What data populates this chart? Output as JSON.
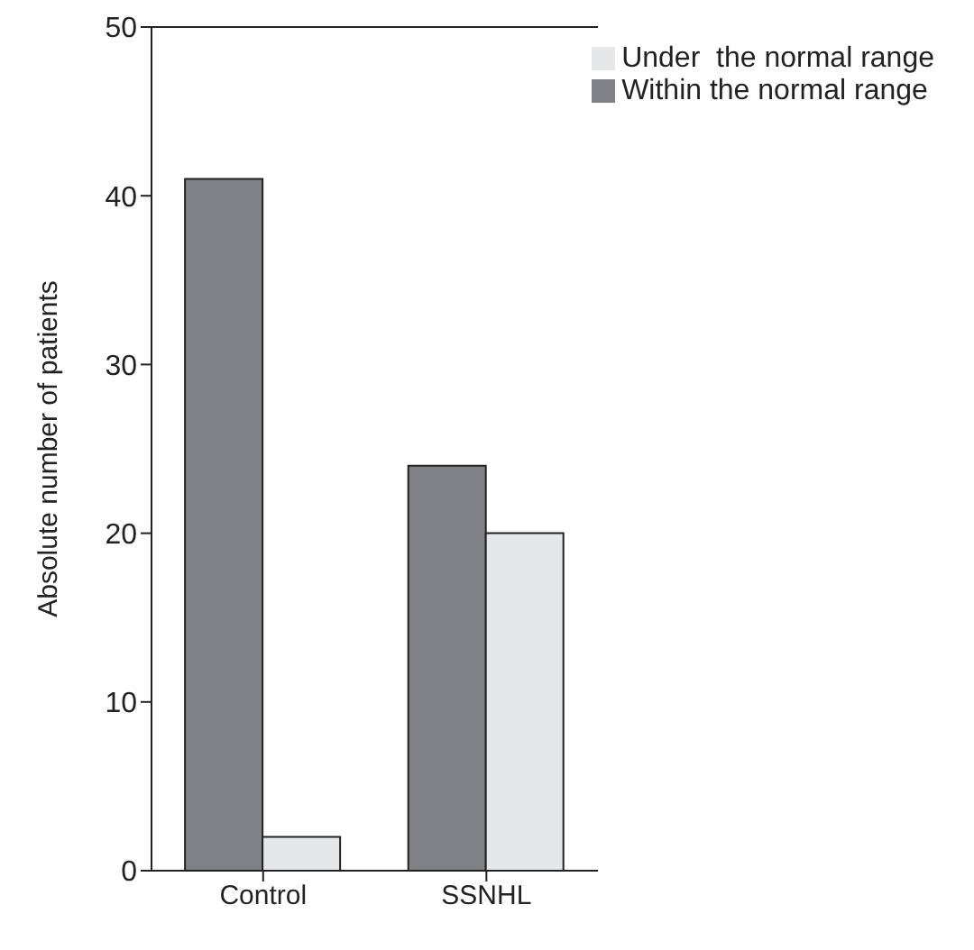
{
  "chart_data": {
    "type": "bar",
    "ylabel": "Absolute number of patients",
    "categories": [
      "Control",
      "SSNHL"
    ],
    "series": [
      {
        "name": "Within the normal range",
        "color": "#808184",
        "values": [
          41,
          24
        ]
      },
      {
        "name": "Under  the normal range",
        "color": "#e6e7e9",
        "values": [
          2,
          20
        ]
      }
    ],
    "ylim": [
      0,
      50
    ],
    "yticks": [
      0,
      10,
      20,
      30,
      40,
      50
    ],
    "grid": false,
    "legend": "top right"
  }
}
